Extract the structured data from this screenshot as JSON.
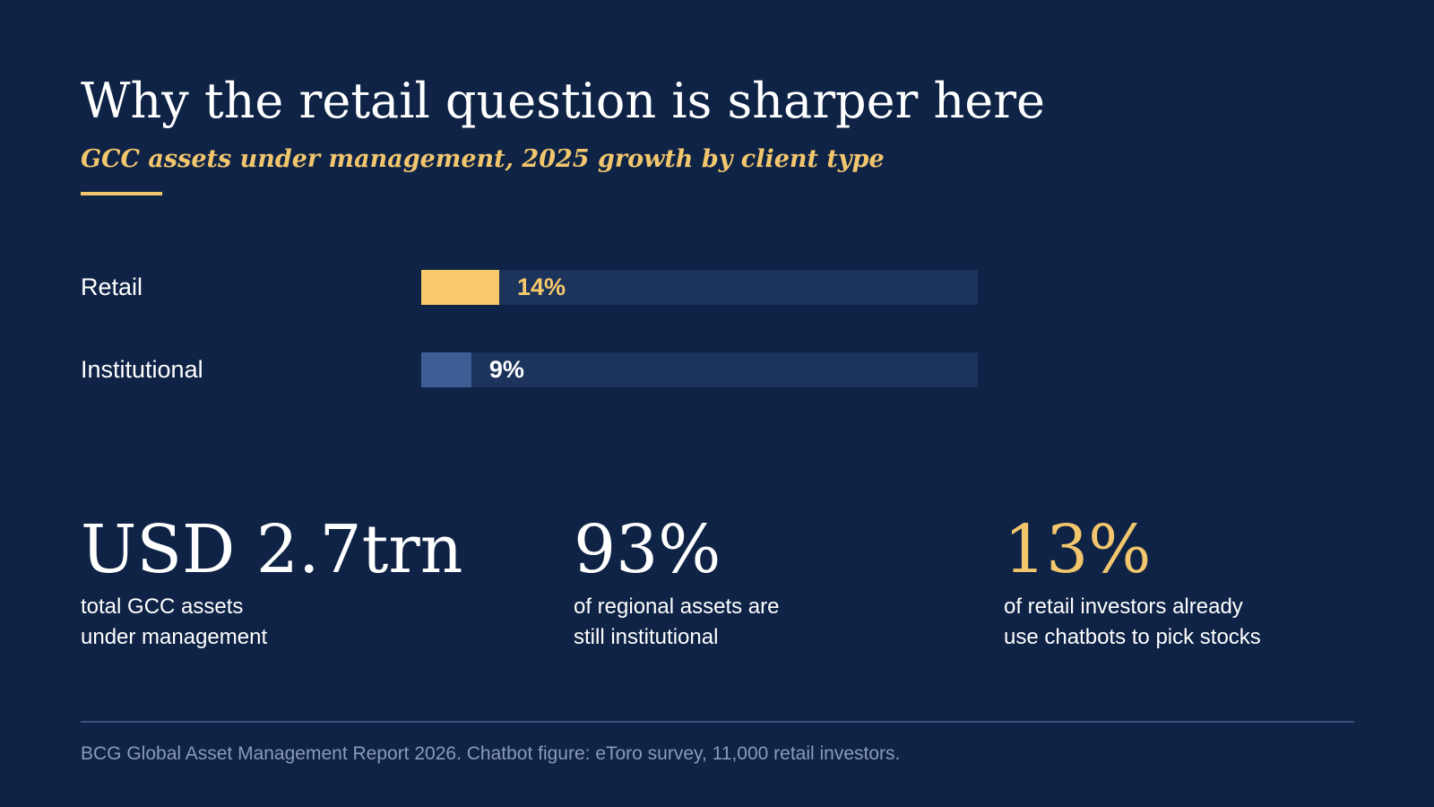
{
  "header": {
    "title": "Why the retail question is sharper here",
    "subtitle": "GCC assets under management, 2025 growth by client type"
  },
  "chart_data": {
    "type": "bar",
    "orientation": "horizontal",
    "title": "Why the retail question is sharper here",
    "subtitle": "GCC assets under management, 2025 growth by client type",
    "categories": [
      "Retail",
      "Institutional"
    ],
    "values": [
      14,
      9
    ],
    "value_labels": [
      "14%",
      "9%"
    ],
    "unit": "%",
    "xlim": [
      0,
      100
    ],
    "grid": false,
    "legend": "none",
    "bar_colors": [
      "#f7c96b",
      "#3d5e94"
    ],
    "value_label_colors": [
      "#f7c96b",
      "#ffffff"
    ]
  },
  "stats": [
    {
      "value": "USD 2.7trn",
      "desc": "total GCC assets\nunder management",
      "color": "#ffffff"
    },
    {
      "value": "93%",
      "desc": "of regional assets are\nstill institutional",
      "color": "#ffffff"
    },
    {
      "value": "13%",
      "desc": "of retail investors already\nuse chatbots to pick stocks",
      "color": "#f2c66d"
    }
  ],
  "footer": {
    "source": "BCG Global Asset Management Report 2026. Chatbot figure: eToro survey, 11,000 retail investors."
  },
  "colors": {
    "background": "#0e2345",
    "accent": "#f2c66d",
    "track": "#1c335c",
    "muted_text": "#8a9bbb"
  }
}
